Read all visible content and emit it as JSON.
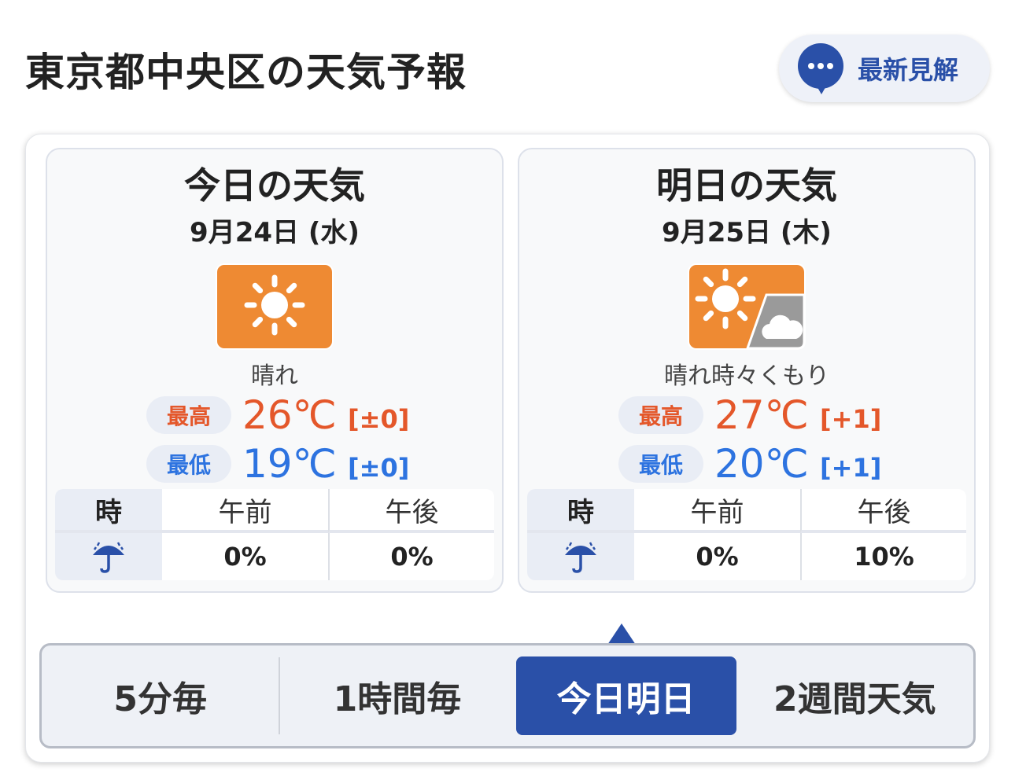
{
  "header": {
    "title": "東京都中央区の天気予報",
    "opinion_label": "最新見解",
    "opinion_icon": "speech-bubble-icon"
  },
  "colors": {
    "accent": "#2a50a8",
    "high": "#e4572a",
    "low": "#2d73e0",
    "sun_bg": "#ee8a33",
    "cloud_bg": "#9a9a9a"
  },
  "days": [
    {
      "heading": "今日の天気",
      "date": "9月24日 (水)",
      "icon": "sunny-icon",
      "telop": "晴れ",
      "high_label": "最高",
      "high": "26℃",
      "high_diff": "[±0]",
      "low_label": "最低",
      "low": "19℃",
      "low_diff": "[±0]",
      "rain": {
        "time_label": "時",
        "icon": "umbrella-icon",
        "am_label": "午前",
        "pm_label": "午後",
        "am": "0%",
        "pm": "0%"
      }
    },
    {
      "heading": "明日の天気",
      "date": "9月25日 (木)",
      "icon": "sunny-sometimes-cloudy-icon",
      "telop": "晴れ時々くもり",
      "high_label": "最高",
      "high": "27℃",
      "high_diff": "[+1]",
      "low_label": "最低",
      "low": "20℃",
      "low_diff": "[+1]",
      "rain": {
        "time_label": "時",
        "icon": "umbrella-icon",
        "am_label": "午前",
        "pm_label": "午後",
        "am": "0%",
        "pm": "10%"
      }
    }
  ],
  "tabs": [
    {
      "label": "5分毎"
    },
    {
      "label": "1時間毎"
    },
    {
      "label": "今日明日",
      "active": true
    },
    {
      "label": "2週間天気"
    }
  ]
}
